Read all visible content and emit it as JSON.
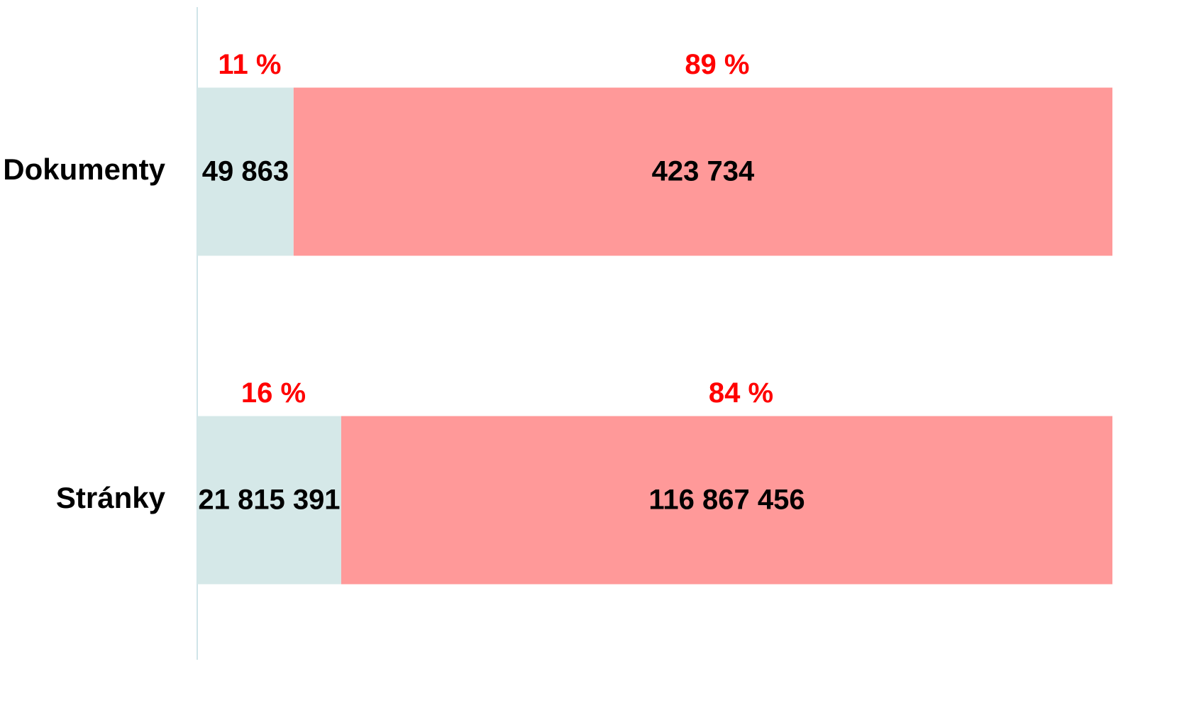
{
  "chart_data": {
    "type": "bar",
    "orientation": "horizontal",
    "stacked": "percent",
    "categories": [
      "Dokumenty",
      "Stránky"
    ],
    "series": [
      {
        "color": "#d5e8e8",
        "values": [
          49863,
          21815391
        ],
        "value_labels": [
          "49 863",
          "21 815 391"
        ],
        "percent_labels": [
          "11 %",
          "16 %"
        ]
      },
      {
        "color": "#ff9999",
        "values": [
          423734,
          116867456
        ],
        "value_labels": [
          "423 734",
          "116 867 456"
        ],
        "percent_labels": [
          "89 %",
          "84 %"
        ]
      }
    ]
  }
}
